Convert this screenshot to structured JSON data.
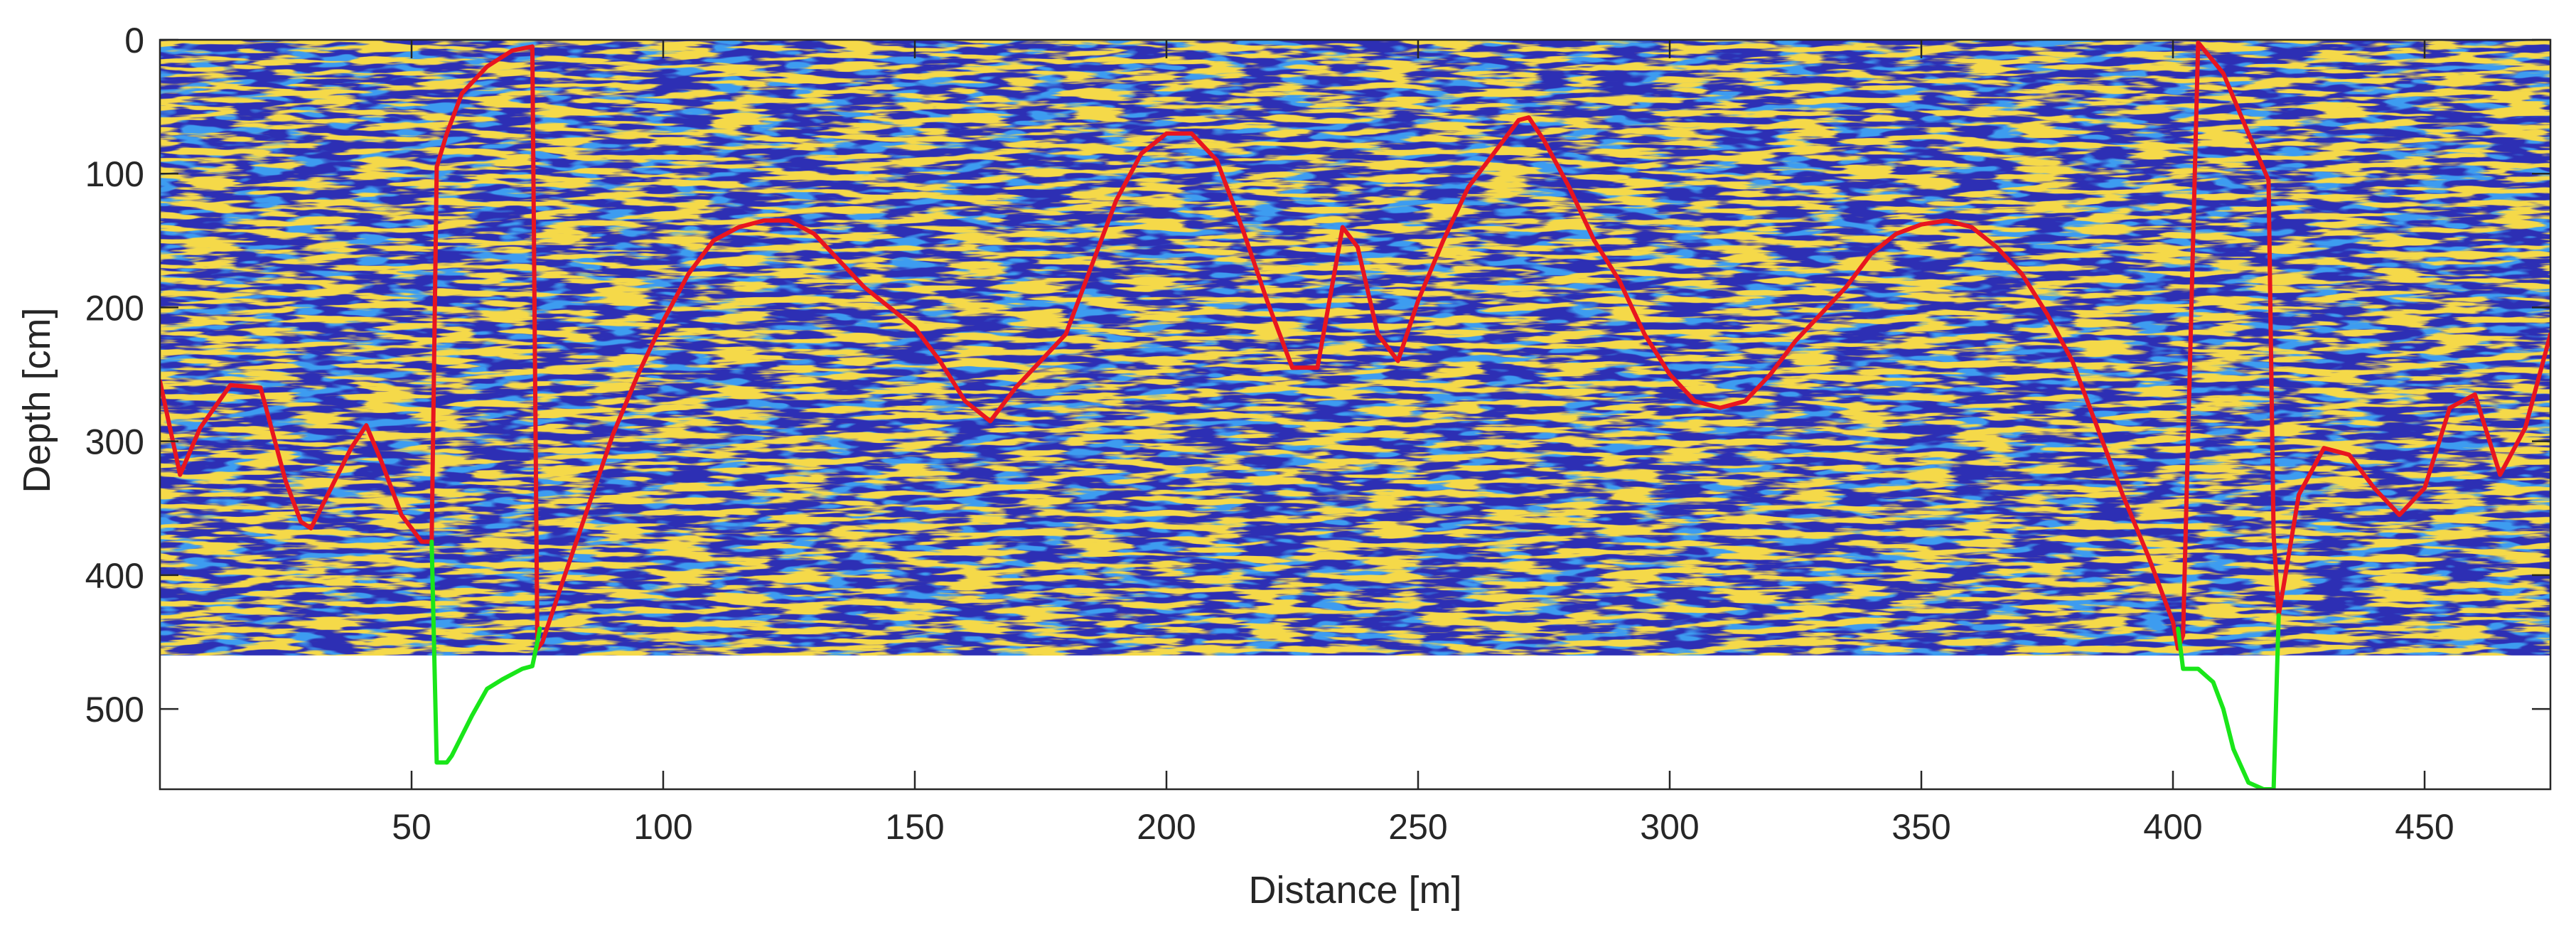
{
  "chart_data": {
    "type": "radargram",
    "xlabel": "Distance [m]",
    "ylabel": "Depth [cm]",
    "xlim": [
      0,
      475
    ],
    "ylim": [
      0,
      560
    ],
    "y_reversed": true,
    "x_ticks": [
      "50",
      "100",
      "150",
      "200",
      "250",
      "300",
      "350",
      "400",
      "450"
    ],
    "y_ticks": [
      "0",
      "100",
      "200",
      "300",
      "400",
      "500"
    ],
    "image_extent_depth": [
      0,
      460
    ],
    "grid": false,
    "colors": {
      "background_trace": "#2d2fb4",
      "reflection_strong": "#f5d94a",
      "reflection_mid": "#3e9cf0",
      "picked_interface": "#e8151f",
      "extrapolated_interface": "#19e619"
    },
    "series": [
      {
        "role": "picked-interface",
        "x": [
          0,
          4,
          8,
          14,
          20,
          25,
          28,
          30,
          34,
          38,
          41,
          44,
          48,
          52,
          54,
          55,
          57,
          60,
          65,
          70,
          74,
          75,
          76,
          80,
          85,
          90,
          95,
          100,
          105,
          110,
          115,
          120,
          125,
          130,
          135,
          140,
          145,
          150,
          155,
          160,
          165,
          170,
          175,
          180,
          185,
          190,
          195,
          200,
          205,
          210,
          215,
          220,
          225,
          230,
          235,
          238,
          242,
          246,
          250,
          255,
          260,
          265,
          270,
          272,
          275,
          280,
          285,
          290,
          295,
          300,
          305,
          310,
          315,
          320,
          325,
          330,
          335,
          340,
          345,
          350,
          355,
          360,
          365,
          370,
          375,
          380,
          385,
          390,
          395,
          400,
          401,
          402,
          405,
          410,
          415,
          419,
          420,
          421,
          425,
          430,
          435,
          440,
          445,
          450,
          455,
          460,
          465,
          470,
          475
        ],
        "y": [
          255,
          325,
          290,
          258,
          260,
          330,
          360,
          365,
          335,
          305,
          288,
          315,
          355,
          375,
          375,
          95,
          70,
          40,
          20,
          8,
          5,
          455,
          450,
          405,
          350,
          295,
          250,
          210,
          175,
          150,
          140,
          135,
          135,
          145,
          165,
          185,
          200,
          215,
          240,
          270,
          285,
          260,
          240,
          220,
          170,
          120,
          85,
          70,
          70,
          90,
          140,
          195,
          245,
          245,
          140,
          155,
          220,
          240,
          195,
          150,
          110,
          85,
          60,
          58,
          75,
          110,
          150,
          180,
          220,
          250,
          270,
          275,
          270,
          250,
          225,
          205,
          185,
          160,
          145,
          138,
          135,
          140,
          155,
          175,
          205,
          240,
          290,
          340,
          385,
          435,
          455,
          445,
          2,
          25,
          70,
          105,
          370,
          430,
          340,
          305,
          310,
          335,
          355,
          335,
          275,
          265,
          325,
          290,
          220
        ]
      },
      {
        "role": "extrapolated-interface-left",
        "x": [
          54,
          55,
          56,
          57,
          58,
          60,
          62,
          65,
          68,
          72,
          74,
          75,
          75.5
        ],
        "y": [
          375,
          540,
          540,
          540,
          535,
          520,
          505,
          485,
          478,
          470,
          468,
          450,
          440
        ]
      },
      {
        "role": "extrapolated-interface-right",
        "x": [
          401,
          402,
          405,
          408,
          410,
          412,
          415,
          418,
          420,
          421
        ],
        "y": [
          440,
          470,
          470,
          480,
          500,
          530,
          555,
          560,
          560,
          430
        ]
      }
    ]
  }
}
